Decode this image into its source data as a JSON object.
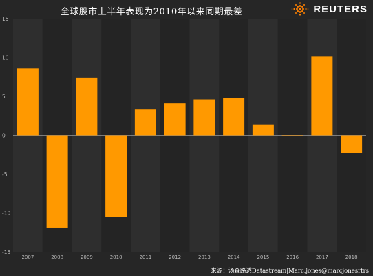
{
  "title": "全球股市上半年表现为2010年以来同期最差",
  "brand": {
    "name": "REUTERS",
    "logo_icon": "reuters-dots-logo-icon"
  },
  "source": "来源：汤森路透Datastream|Marc.jones@marcjonesrtrs",
  "colors": {
    "background": "#262626",
    "band_light": "#2e2e2e",
    "band_dark": "#242424",
    "bar": "#FF9900",
    "text": "#ffffff",
    "tick": "#bbbbbb",
    "zero_line": "#9a9a9a"
  },
  "chart_data": {
    "type": "bar",
    "title": "全球股市上半年表现为2010年以来同期最差",
    "categories": [
      "2007",
      "2008",
      "2009",
      "2010",
      "2011",
      "2012",
      "2013",
      "2014",
      "2015",
      "2016",
      "2017",
      "2018"
    ],
    "values": [
      8.6,
      -11.9,
      7.4,
      -10.5,
      3.3,
      4.1,
      4.6,
      4.8,
      1.4,
      -0.1,
      10.1,
      -2.3
    ],
    "ylim": [
      -15,
      15
    ],
    "yticks": [
      -15,
      -10,
      -5,
      0,
      5,
      10,
      15
    ],
    "xlabel": "",
    "ylabel": "",
    "grid": "alternating-column-bands",
    "legend": "none"
  }
}
